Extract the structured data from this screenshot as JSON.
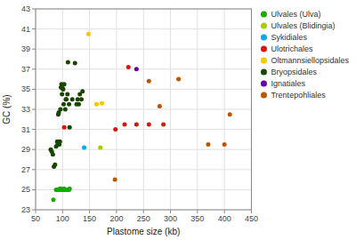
{
  "chart_data": {
    "type": "scatter",
    "xlabel": "Plastome size (kb)",
    "ylabel": "GC (%)",
    "xlim": [
      50,
      450
    ],
    "ylim": [
      23,
      43
    ],
    "xticks": [
      50,
      100,
      150,
      200,
      250,
      300,
      350,
      400,
      450
    ],
    "yticks": [
      23,
      25,
      27,
      29,
      31,
      33,
      35,
      37,
      39,
      41,
      43
    ],
    "grid": true,
    "legend": "right",
    "series": [
      {
        "name": "Ulvales (Ulva)",
        "color": "#1aaa00",
        "x": [
          83,
          88,
          90,
          92,
          93,
          94,
          95,
          96,
          97,
          98,
          99,
          100,
          101,
          102,
          103,
          104,
          105,
          106,
          107,
          108,
          110,
          112,
          113
        ],
        "values": [
          24.0,
          25.0,
          25.0,
          25.0,
          25.0,
          25.0,
          25.1,
          25.0,
          25.0,
          25.1,
          25.0,
          25.0,
          25.0,
          25.0,
          25.1,
          25.0,
          25.0,
          25.0,
          25.0,
          25.0,
          25.0,
          25.0,
          25.1
        ]
      },
      {
        "name": "Ulvales (Blidingia)",
        "color": "#aacc00",
        "x": [
          170
        ],
        "values": [
          29.2
        ]
      },
      {
        "name": "Sykidiales",
        "color": "#00aaee",
        "x": [
          140
        ],
        "values": [
          29.2
        ]
      },
      {
        "name": "Ulotrichales",
        "color": "#dd1111",
        "x": [
          103,
          198,
          215,
          222,
          237,
          260,
          287
        ],
        "values": [
          31.2,
          31.0,
          31.5,
          37.2,
          31.5,
          31.5,
          31.5
        ]
      },
      {
        "name": "Oltmannsiellopsi­dales",
        "color": "#f5c800",
        "x": [
          148,
          163,
          173
        ],
        "values": [
          40.5,
          33.5,
          33.6
        ]
      },
      {
        "name": "Bryopsidales",
        "color": "#1a4500",
        "x": [
          78,
          80,
          82,
          84,
          86,
          88,
          90,
          91,
          92,
          93,
          94,
          95,
          96,
          97,
          98,
          99,
          100,
          101,
          102,
          103,
          105,
          106,
          107,
          109,
          110,
          112,
          113,
          118,
          123,
          126,
          128,
          130,
          132,
          135,
          137
        ],
        "values": [
          29.0,
          28.8,
          28.5,
          27.3,
          27.5,
          29.3,
          29.8,
          29.5,
          32.5,
          32.7,
          29.5,
          29.8,
          33.0,
          35.2,
          35.5,
          34.5,
          35.1,
          35.0,
          33.5,
          35.5,
          33.0,
          34.0,
          34.0,
          34.5,
          37.7,
          33.5,
          31.2,
          34.0,
          37.6,
          33.5,
          34.0,
          33.5,
          34.5,
          34.0,
          34.8
        ]
      },
      {
        "name": "Ignatiales",
        "color": "#6600aa",
        "x": [
          237
        ],
        "values": [
          37.0
        ]
      },
      {
        "name": "Trentepohliales",
        "color": "#bb5500",
        "x": [
          197,
          260,
          280,
          315,
          370,
          400,
          410
        ],
        "values": [
          26.0,
          35.8,
          33.3,
          36.0,
          29.5,
          29.5,
          32.5
        ]
      }
    ]
  }
}
